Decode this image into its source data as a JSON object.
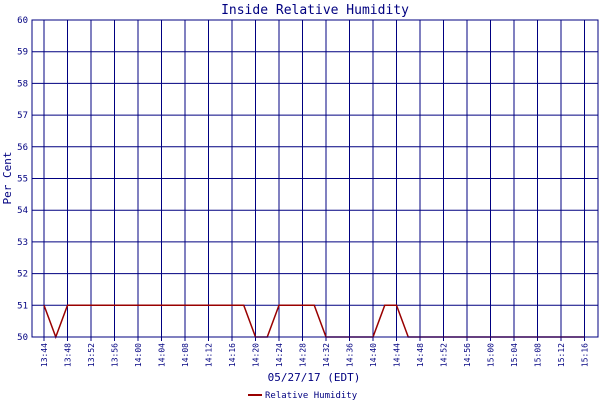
{
  "chart_data": {
    "type": "line",
    "title": "Inside Relative Humidity",
    "xlabel": "05/27/17 (EDT)",
    "ylabel": "Per Cent",
    "ylim": [
      50,
      60
    ],
    "yticks": [
      "50",
      "51",
      "52",
      "53",
      "54",
      "55",
      "56",
      "57",
      "58",
      "59",
      "60"
    ],
    "xticks": [
      "13:44",
      "13:48",
      "13:52",
      "13:56",
      "14:00",
      "14:04",
      "14:08",
      "14:12",
      "14:16",
      "14:20",
      "14:24",
      "14:28",
      "14:32",
      "14:36",
      "14:40",
      "14:44",
      "14:48",
      "14:52",
      "14:56",
      "15:00",
      "15:04",
      "15:08",
      "15:12",
      "15:16"
    ],
    "grid": true,
    "legend": "bottom",
    "series": [
      {
        "name": "Relative Humidity",
        "color": "#990000",
        "x": [
          "13:44",
          "13:46",
          "13:48",
          "13:50",
          "13:52",
          "13:54",
          "13:56",
          "13:58",
          "14:00",
          "14:02",
          "14:04",
          "14:06",
          "14:08",
          "14:10",
          "14:12",
          "14:14",
          "14:16",
          "14:18",
          "14:20",
          "14:22",
          "14:24",
          "14:26",
          "14:28",
          "14:30",
          "14:32",
          "14:34",
          "14:36",
          "14:38",
          "14:40",
          "14:42",
          "14:44",
          "14:46",
          "14:48",
          "14:50",
          "14:52",
          "14:54",
          "14:56",
          "14:58",
          "15:00",
          "15:02",
          "15:04",
          "15:06",
          "15:08",
          "15:10",
          "15:12",
          "15:14",
          "15:16"
        ],
        "values": [
          51,
          50,
          51,
          51,
          51,
          51,
          51,
          51,
          51,
          51,
          51,
          51,
          51,
          51,
          51,
          51,
          51,
          51,
          50,
          50,
          51,
          51,
          51,
          51,
          50,
          50,
          50,
          50,
          50,
          51,
          51,
          50,
          50,
          50,
          50,
          50,
          50,
          50,
          50,
          50,
          50,
          50,
          50,
          50,
          50,
          50,
          50
        ]
      }
    ]
  },
  "colors": {
    "grid": "#000080",
    "frame": "#000080",
    "text": "#000080",
    "line": "#990000"
  }
}
